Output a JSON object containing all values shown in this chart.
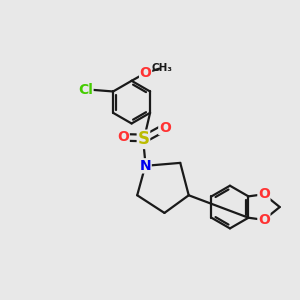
{
  "background_color": "#e8e8e8",
  "bond_color": "#1a1a1a",
  "bond_width": 1.6,
  "atom_colors": {
    "Cl": "#44cc00",
    "O": "#ff3333",
    "S": "#bbbb00",
    "N": "#0000ee",
    "C": "#1a1a1a"
  },
  "font_size": 10,
  "figsize": [
    3.0,
    3.0
  ],
  "dpi": 100
}
